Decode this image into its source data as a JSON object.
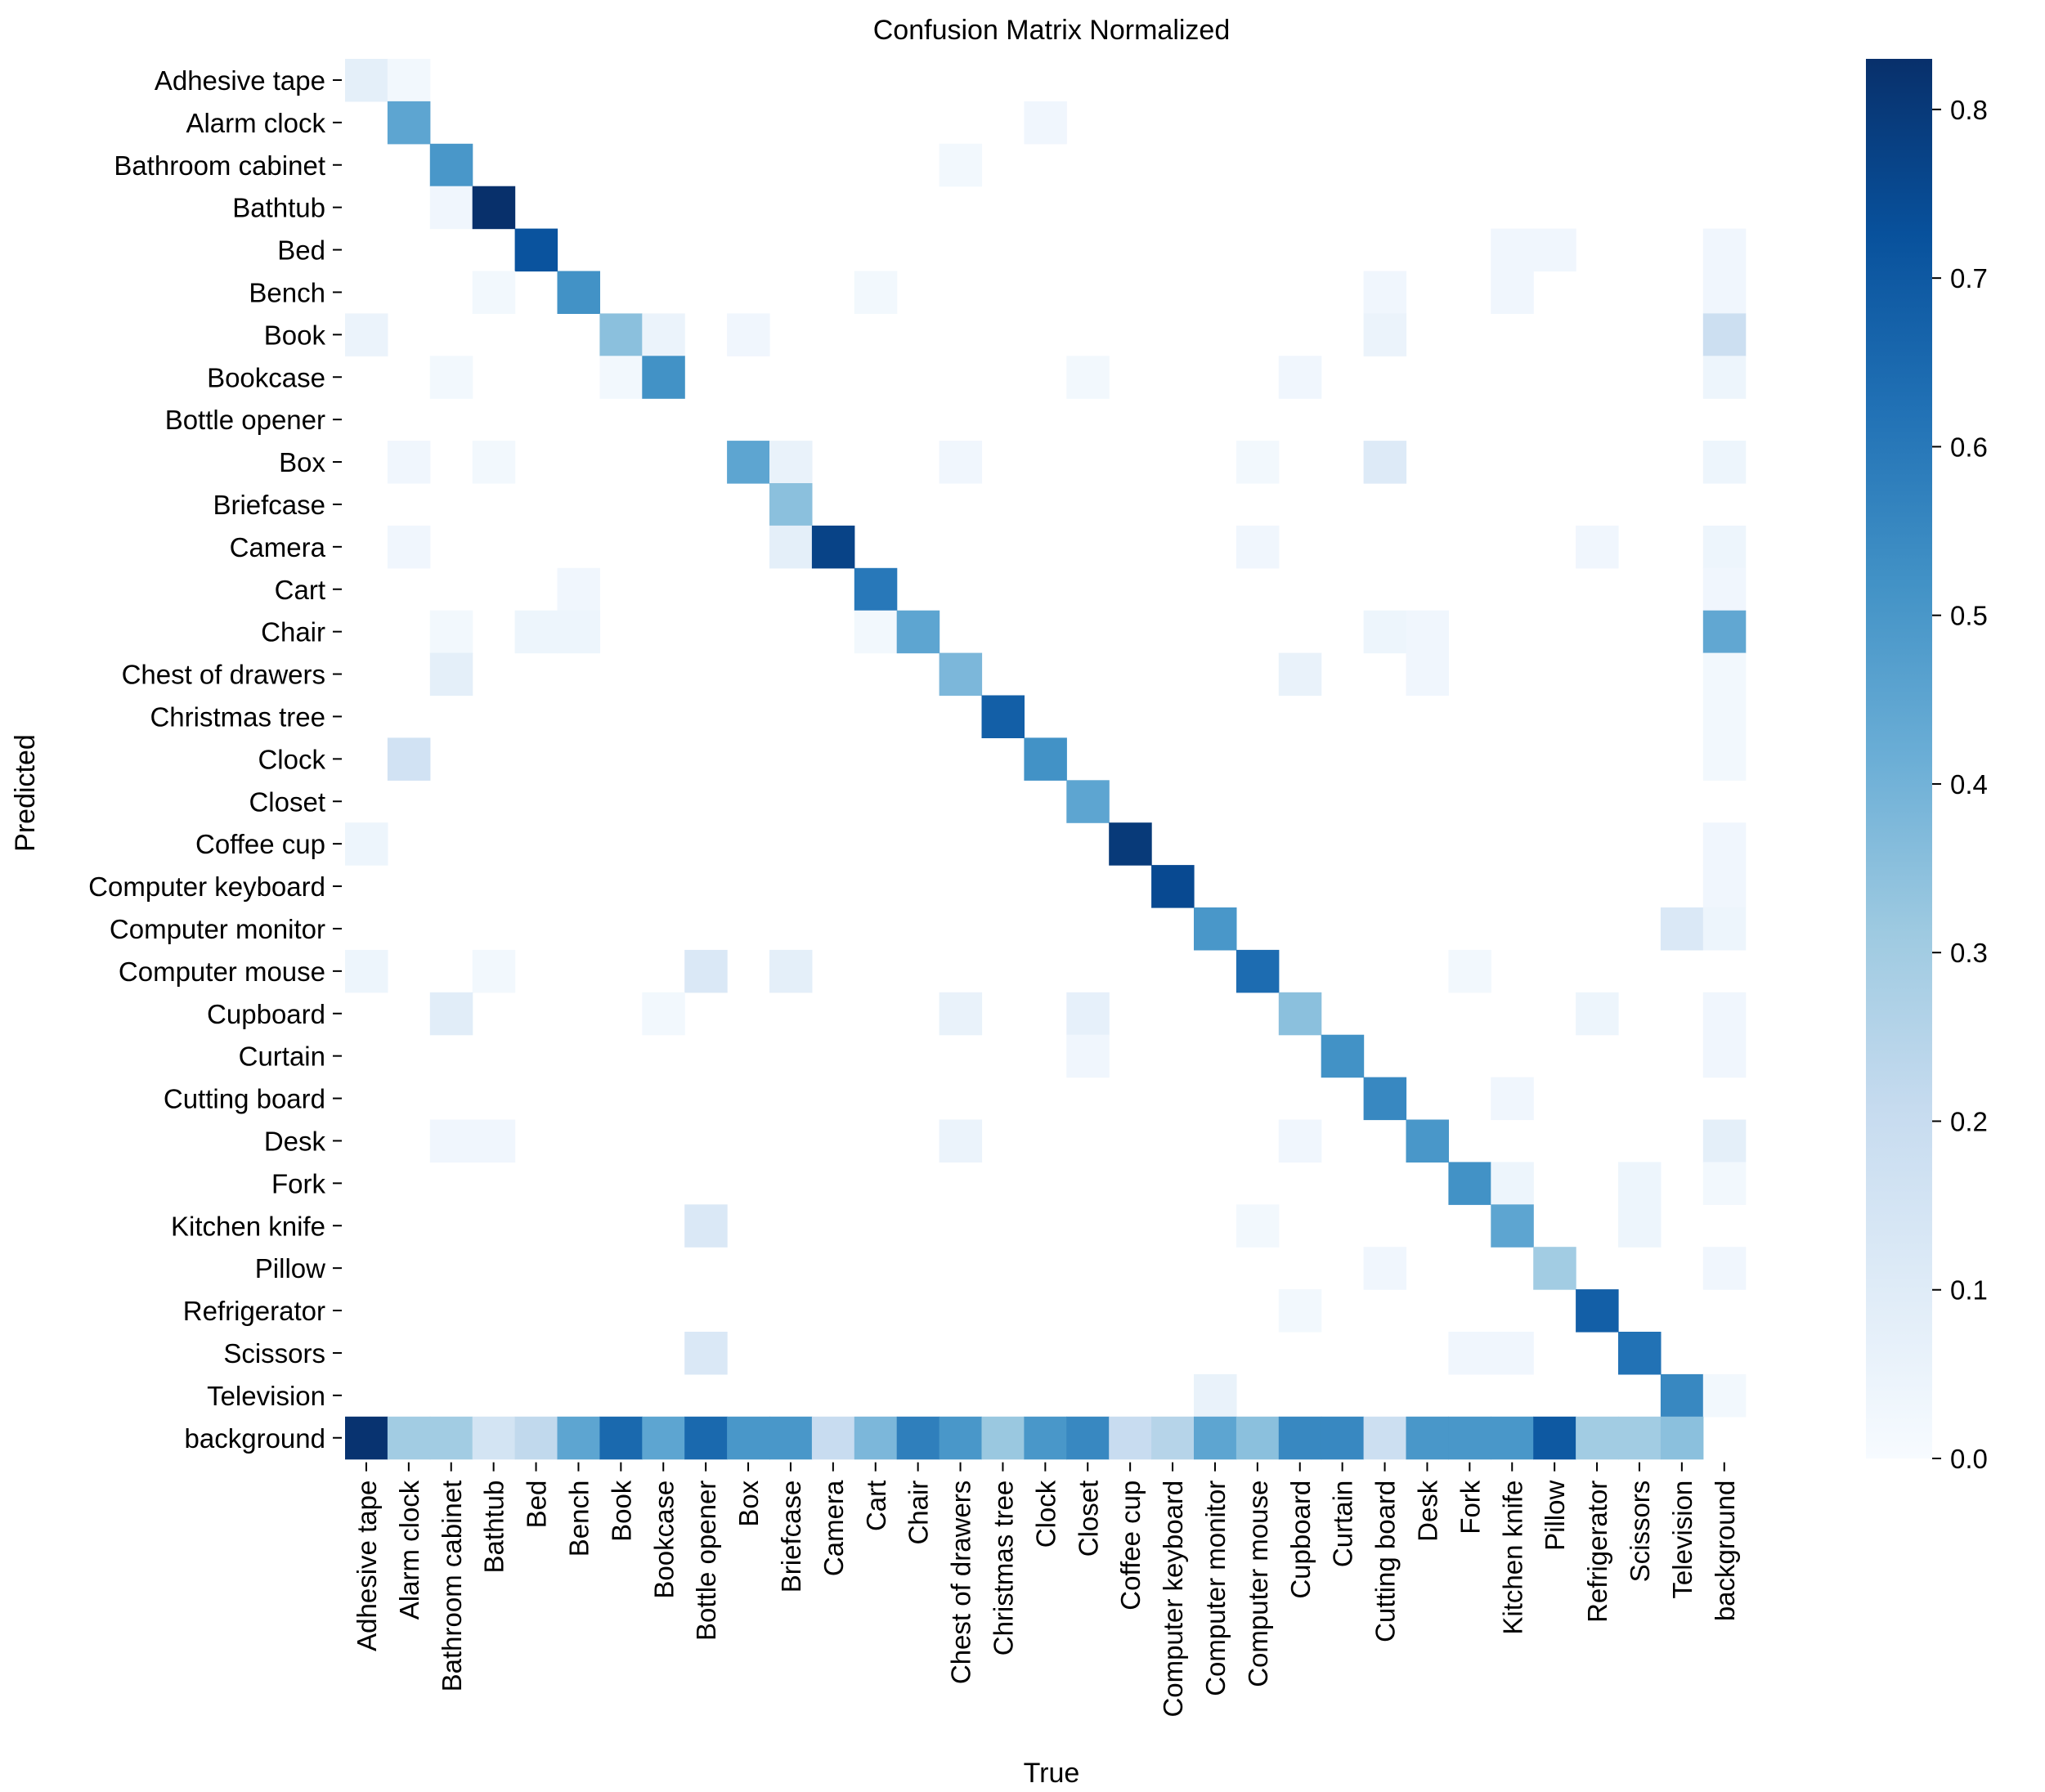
{
  "chart_data": {
    "type": "heatmap",
    "title": "Confusion Matrix Normalized",
    "xlabel": "True",
    "ylabel": "Predicted",
    "labels": [
      "Adhesive tape",
      "Alarm clock",
      "Bathroom cabinet",
      "Bathtub",
      "Bed",
      "Bench",
      "Book",
      "Bookcase",
      "Bottle opener",
      "Box",
      "Briefcase",
      "Camera",
      "Cart",
      "Chair",
      "Chest of drawers",
      "Christmas tree",
      "Clock",
      "Closet",
      "Coffee cup",
      "Computer keyboard",
      "Computer monitor",
      "Computer mouse",
      "Cupboard",
      "Curtain",
      "Cutting board",
      "Desk",
      "Fork",
      "Kitchen knife",
      "Pillow",
      "Refrigerator",
      "Scissors",
      "Television",
      "background"
    ],
    "colorbar": {
      "min": 0.0,
      "max": 0.83,
      "ticks": [
        "0.0",
        "0.1",
        "0.2",
        "0.3",
        "0.4",
        "0.5",
        "0.6",
        "0.7",
        "0.8"
      ]
    },
    "cells": [
      [
        0,
        0,
        0.08
      ],
      [
        0,
        1,
        0.02
      ],
      [
        1,
        1,
        0.45
      ],
      [
        1,
        16,
        0.03
      ],
      [
        2,
        2,
        0.5
      ],
      [
        2,
        14,
        0.02
      ],
      [
        3,
        2,
        0.03
      ],
      [
        3,
        3,
        0.83
      ],
      [
        4,
        4,
        0.72
      ],
      [
        4,
        27,
        0.03
      ],
      [
        4,
        28,
        0.03
      ],
      [
        4,
        32,
        0.03
      ],
      [
        5,
        3,
        0.02
      ],
      [
        5,
        5,
        0.52
      ],
      [
        5,
        12,
        0.02
      ],
      [
        5,
        24,
        0.03
      ],
      [
        5,
        27,
        0.03
      ],
      [
        5,
        32,
        0.03
      ],
      [
        6,
        0,
        0.05
      ],
      [
        6,
        6,
        0.35
      ],
      [
        6,
        7,
        0.05
      ],
      [
        6,
        9,
        0.03
      ],
      [
        6,
        24,
        0.05
      ],
      [
        6,
        32,
        0.18
      ],
      [
        7,
        2,
        0.02
      ],
      [
        7,
        6,
        0.02
      ],
      [
        7,
        7,
        0.52
      ],
      [
        7,
        17,
        0.02
      ],
      [
        7,
        22,
        0.03
      ],
      [
        7,
        32,
        0.04
      ],
      [
        9,
        1,
        0.03
      ],
      [
        9,
        3,
        0.02
      ],
      [
        9,
        9,
        0.45
      ],
      [
        9,
        10,
        0.06
      ],
      [
        9,
        14,
        0.03
      ],
      [
        9,
        21,
        0.02
      ],
      [
        9,
        24,
        0.11
      ],
      [
        9,
        32,
        0.04
      ],
      [
        10,
        10,
        0.35
      ],
      [
        11,
        1,
        0.03
      ],
      [
        11,
        10,
        0.08
      ],
      [
        11,
        11,
        0.77
      ],
      [
        11,
        21,
        0.03
      ],
      [
        11,
        29,
        0.03
      ],
      [
        11,
        32,
        0.04
      ],
      [
        12,
        5,
        0.03
      ],
      [
        12,
        12,
        0.6
      ],
      [
        12,
        32,
        0.03
      ],
      [
        13,
        2,
        0.02
      ],
      [
        13,
        4,
        0.04
      ],
      [
        13,
        5,
        0.04
      ],
      [
        13,
        12,
        0.02
      ],
      [
        13,
        13,
        0.45
      ],
      [
        13,
        24,
        0.04
      ],
      [
        13,
        25,
        0.03
      ],
      [
        13,
        32,
        0.44
      ],
      [
        14,
        2,
        0.08
      ],
      [
        14,
        14,
        0.38
      ],
      [
        14,
        22,
        0.06
      ],
      [
        14,
        25,
        0.03
      ],
      [
        14,
        32,
        0.02
      ],
      [
        15,
        15,
        0.68
      ],
      [
        15,
        32,
        0.02
      ],
      [
        16,
        1,
        0.16
      ],
      [
        16,
        16,
        0.52
      ],
      [
        16,
        32,
        0.02
      ],
      [
        17,
        17,
        0.45
      ],
      [
        18,
        0,
        0.04
      ],
      [
        18,
        18,
        0.8
      ],
      [
        18,
        32,
        0.03
      ],
      [
        19,
        19,
        0.75
      ],
      [
        19,
        32,
        0.03
      ],
      [
        20,
        20,
        0.5
      ],
      [
        20,
        31,
        0.12
      ],
      [
        20,
        32,
        0.04
      ],
      [
        21,
        0,
        0.04
      ],
      [
        21,
        3,
        0.02
      ],
      [
        21,
        8,
        0.12
      ],
      [
        21,
        10,
        0.08
      ],
      [
        21,
        21,
        0.64
      ],
      [
        21,
        26,
        0.02
      ],
      [
        22,
        2,
        0.09
      ],
      [
        22,
        7,
        0.02
      ],
      [
        22,
        14,
        0.06
      ],
      [
        22,
        17,
        0.07
      ],
      [
        22,
        22,
        0.35
      ],
      [
        22,
        29,
        0.04
      ],
      [
        22,
        32,
        0.03
      ],
      [
        23,
        17,
        0.03
      ],
      [
        23,
        23,
        0.52
      ],
      [
        23,
        32,
        0.03
      ],
      [
        24,
        24,
        0.55
      ],
      [
        24,
        27,
        0.03
      ],
      [
        25,
        2,
        0.03
      ],
      [
        25,
        3,
        0.03
      ],
      [
        25,
        14,
        0.05
      ],
      [
        25,
        22,
        0.03
      ],
      [
        25,
        25,
        0.5
      ],
      [
        25,
        32,
        0.08
      ],
      [
        26,
        26,
        0.52
      ],
      [
        26,
        27,
        0.04
      ],
      [
        26,
        30,
        0.04
      ],
      [
        26,
        32,
        0.02
      ],
      [
        27,
        8,
        0.12
      ],
      [
        27,
        21,
        0.02
      ],
      [
        27,
        27,
        0.45
      ],
      [
        27,
        30,
        0.04
      ],
      [
        28,
        24,
        0.03
      ],
      [
        28,
        28,
        0.3
      ],
      [
        28,
        32,
        0.03
      ],
      [
        29,
        22,
        0.02
      ],
      [
        29,
        29,
        0.68
      ],
      [
        30,
        8,
        0.12
      ],
      [
        30,
        26,
        0.03
      ],
      [
        30,
        27,
        0.03
      ],
      [
        30,
        30,
        0.62
      ],
      [
        31,
        20,
        0.06
      ],
      [
        31,
        31,
        0.55
      ],
      [
        31,
        32,
        0.02
      ],
      [
        32,
        0,
        0.82
      ],
      [
        32,
        1,
        0.3
      ],
      [
        32,
        2,
        0.3
      ],
      [
        32,
        3,
        0.15
      ],
      [
        32,
        4,
        0.22
      ],
      [
        32,
        5,
        0.45
      ],
      [
        32,
        6,
        0.65
      ],
      [
        32,
        7,
        0.45
      ],
      [
        32,
        8,
        0.65
      ],
      [
        32,
        9,
        0.5
      ],
      [
        32,
        10,
        0.5
      ],
      [
        32,
        11,
        0.2
      ],
      [
        32,
        12,
        0.38
      ],
      [
        32,
        13,
        0.58
      ],
      [
        32,
        14,
        0.5
      ],
      [
        32,
        15,
        0.32
      ],
      [
        32,
        16,
        0.5
      ],
      [
        32,
        17,
        0.55
      ],
      [
        32,
        18,
        0.2
      ],
      [
        32,
        19,
        0.25
      ],
      [
        32,
        20,
        0.45
      ],
      [
        32,
        21,
        0.35
      ],
      [
        32,
        22,
        0.55
      ],
      [
        32,
        23,
        0.55
      ],
      [
        32,
        24,
        0.18
      ],
      [
        32,
        25,
        0.5
      ],
      [
        32,
        26,
        0.5
      ],
      [
        32,
        27,
        0.5
      ],
      [
        32,
        28,
        0.7
      ],
      [
        32,
        29,
        0.3
      ],
      [
        32,
        30,
        0.3
      ],
      [
        32,
        31,
        0.35
      ]
    ]
  }
}
